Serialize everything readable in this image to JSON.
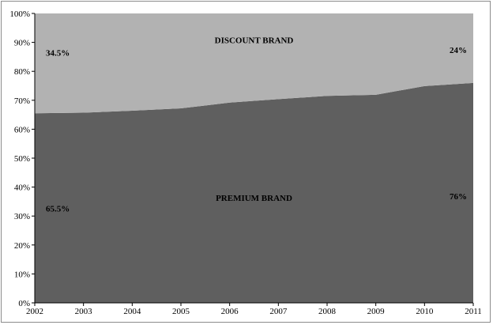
{
  "chart_data": {
    "type": "area",
    "stacked": true,
    "x": [
      "2002",
      "2003",
      "2004",
      "2005",
      "2006",
      "2007",
      "2008",
      "2009",
      "2010",
      "2011"
    ],
    "series": [
      {
        "name": "PREMIUM BRAND",
        "values": [
          65.5,
          65.7,
          66.4,
          67.2,
          69.2,
          70.4,
          71.5,
          71.9,
          74.9,
          76.0
        ],
        "color": "#5f5f5f"
      },
      {
        "name": "DISCOUNT BRAND",
        "values": [
          34.5,
          34.3,
          33.6,
          32.8,
          30.8,
          29.6,
          28.5,
          28.1,
          25.1,
          24.0
        ],
        "color": "#b2b2b2"
      }
    ],
    "ylim": [
      0,
      100
    ],
    "yticks": [
      "0%",
      "10%",
      "20%",
      "30%",
      "40%",
      "50%",
      "60%",
      "70%",
      "80%",
      "90%",
      "100%"
    ],
    "grid": false,
    "annotations": [
      {
        "text": "34.5%",
        "x": "2002",
        "y": 86.5
      },
      {
        "text": "24%",
        "x": "2011",
        "y": 87.5
      },
      {
        "text": "65.5%",
        "x": "2002",
        "y": 32.6
      },
      {
        "text": "76%",
        "x": "2011",
        "y": 36.9
      },
      {
        "text": "DISCOUNT BRAND",
        "x": "2006.5",
        "y": 90.9,
        "anchor": "middle"
      },
      {
        "text": "PREMIUM BRAND",
        "x": "2006.5",
        "y": 36.4,
        "anchor": "middle"
      }
    ]
  }
}
